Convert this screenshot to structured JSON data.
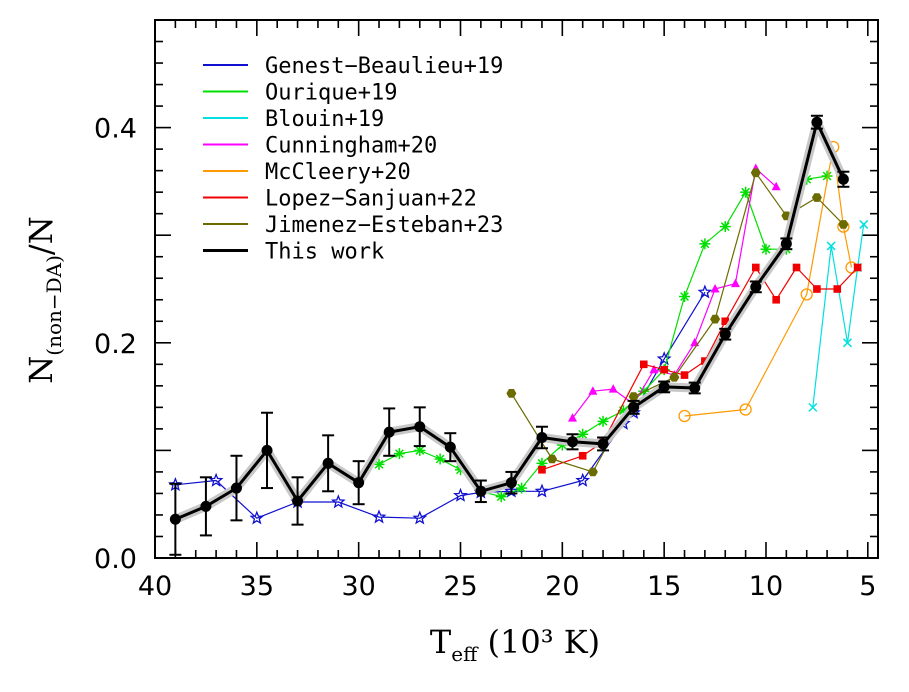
{
  "chart_data": {
    "type": "line",
    "xlabel": {
      "main": "T",
      "sub": "eff",
      "rest": " (10³ K)"
    },
    "ylabel": {
      "main": "N",
      "sub": "(non−DA)",
      "rest": "/N"
    },
    "xlim": [
      40,
      4.5
    ],
    "ylim": [
      0,
      0.5
    ],
    "xticks": [
      "40",
      "35",
      "30",
      "25",
      "20",
      "15",
      "10",
      "5"
    ],
    "yticks": [
      "0.0",
      "0.2",
      "0.4"
    ],
    "legend_position": "top-left",
    "series": [
      {
        "name": "Genest−Beaulieu+19",
        "color": "#1010d0",
        "marker": "star-open",
        "x": [
          39,
          37,
          35,
          33,
          31,
          29,
          27,
          25,
          24,
          22.5,
          21,
          19,
          17,
          16.5,
          15,
          13
        ],
        "y": [
          0.068,
          0.072,
          0.037,
          0.052,
          0.052,
          0.038,
          0.037,
          0.058,
          0.061,
          0.062,
          0.062,
          0.072,
          0.125,
          0.135,
          0.185,
          0.247
        ]
      },
      {
        "name": "Ourique+19",
        "color": "#00e000",
        "marker": "asterisk",
        "x": [
          29,
          28,
          27,
          26,
          25,
          24,
          23,
          22,
          21,
          20,
          19,
          18,
          17,
          16,
          15,
          14,
          13,
          12,
          11,
          10,
          9,
          8,
          7
        ],
        "y": [
          0.087,
          0.097,
          0.1,
          0.092,
          0.082,
          0.062,
          0.057,
          0.065,
          0.088,
          0.105,
          0.115,
          0.127,
          0.137,
          0.155,
          0.175,
          0.243,
          0.292,
          0.308,
          0.34,
          0.287,
          0.287,
          0.352,
          0.355
        ]
      },
      {
        "name": "Blouin+19",
        "color": "#00e0e0",
        "marker": "cross",
        "x": [
          7.7,
          6.8,
          6,
          5.5,
          5.2
        ],
        "y": [
          0.14,
          0.29,
          0.2,
          0.27,
          0.31
        ]
      },
      {
        "name": "Cunningham+20",
        "color": "#ff00ff",
        "marker": "triangle",
        "x": [
          19.5,
          18.5,
          17.5,
          16.5,
          15.5,
          14.5,
          13.5,
          12.5,
          11.5,
          10.5,
          9.5
        ],
        "y": [
          0.13,
          0.155,
          0.157,
          0.143,
          0.175,
          0.17,
          0.2,
          0.25,
          0.255,
          0.362,
          0.345
        ]
      },
      {
        "name": "McCleery+20",
        "color": "#ff9900",
        "marker": "circle-open",
        "x": [
          14,
          11,
          8,
          6.7,
          6.2,
          5.8
        ],
        "y": [
          0.132,
          0.138,
          0.245,
          0.382,
          0.308,
          0.27
        ]
      },
      {
        "name": "Lopez−Sanjuan+22",
        "color": "#f00000",
        "marker": "square",
        "x": [
          21,
          19,
          18,
          16,
          15,
          14,
          13,
          12,
          10.5,
          9.5,
          8.5,
          7.5,
          6.5,
          5.5
        ],
        "y": [
          0.082,
          0.095,
          0.108,
          0.18,
          0.175,
          0.17,
          0.183,
          0.22,
          0.27,
          0.24,
          0.27,
          0.25,
          0.25,
          0.27
        ]
      },
      {
        "name": "Jimenez−Esteban+23",
        "color": "#6b6b00",
        "marker": "hexagon",
        "x": [
          22.5,
          20.5,
          18.5,
          16.5,
          14.5,
          12.5,
          10.5,
          9,
          7.5,
          6.2
        ],
        "y": [
          0.153,
          0.092,
          0.08,
          0.15,
          0.168,
          0.222,
          0.358,
          0.318,
          0.335,
          0.31
        ]
      },
      {
        "name": "This work",
        "color": "#000000",
        "marker": "filled-circle",
        "x": [
          39,
          37.5,
          36,
          34.5,
          33,
          31.5,
          30,
          28.5,
          27,
          25.5,
          24,
          22.5,
          21,
          19.5,
          18,
          16.5,
          15,
          13.5,
          12,
          10.5,
          9,
          7.5,
          6.2
        ],
        "y": [
          0.036,
          0.048,
          0.065,
          0.1,
          0.053,
          0.088,
          0.07,
          0.117,
          0.122,
          0.103,
          0.062,
          0.07,
          0.112,
          0.108,
          0.106,
          0.14,
          0.159,
          0.158,
          0.208,
          0.252,
          0.292,
          0.405,
          0.352
        ],
        "err": [
          0.033,
          0.027,
          0.03,
          0.035,
          0.022,
          0.026,
          0.02,
          0.022,
          0.018,
          0.013,
          0.01,
          0.01,
          0.01,
          0.007,
          0.006,
          0.006,
          0.005,
          0.005,
          0.005,
          0.005,
          0.005,
          0.006,
          0.007
        ]
      }
    ]
  }
}
